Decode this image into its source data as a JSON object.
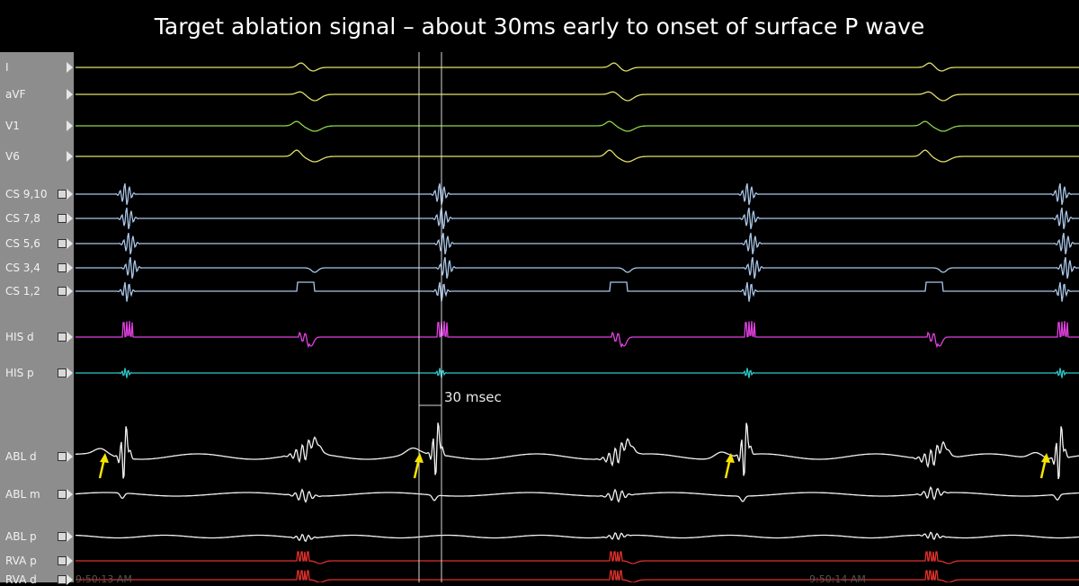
{
  "title": "Target ablation signal – about 30ms early to onset of surface P wave",
  "measurement_label": "30 msec",
  "time_stamps": [
    "9:50:13 AM",
    "9:50:14 AM"
  ],
  "channels": [
    {
      "id": "I",
      "label": "I",
      "color": "#e3df6a",
      "control": "arrow"
    },
    {
      "id": "aVF",
      "label": "aVF",
      "color": "#e3df6a",
      "control": "arrow"
    },
    {
      "id": "V1",
      "label": "V1",
      "color": "#8fd64a",
      "control": "arrow"
    },
    {
      "id": "V6",
      "label": "V6",
      "color": "#e3df6a",
      "control": "arrow"
    },
    {
      "id": "CS910",
      "label": "CS 9,10",
      "color": "#a9c6e8",
      "control": "box"
    },
    {
      "id": "CS78",
      "label": "CS 7,8",
      "color": "#a9c6e8",
      "control": "box"
    },
    {
      "id": "CS56",
      "label": "CS 5,6",
      "color": "#a9c6e8",
      "control": "box"
    },
    {
      "id": "CS34",
      "label": "CS 3,4",
      "color": "#a9c6e8",
      "control": "box"
    },
    {
      "id": "CS12",
      "label": "CS 1,2",
      "color": "#a9c6e8",
      "control": "box"
    },
    {
      "id": "HISd",
      "label": "HIS d",
      "color": "#e040e0",
      "control": "box"
    },
    {
      "id": "HISp",
      "label": "HIS p",
      "color": "#2ec8c8",
      "control": "box"
    },
    {
      "id": "ABLd",
      "label": "ABL d",
      "color": "#f2f2f2",
      "control": "box"
    },
    {
      "id": "ABLm",
      "label": "ABL m",
      "color": "#f2f2f2",
      "control": "box"
    },
    {
      "id": "ABLp",
      "label": "ABL p",
      "color": "#f2f2f2",
      "control": "box"
    },
    {
      "id": "RVAp",
      "label": "RVA p",
      "color": "#e0302a",
      "control": "box"
    },
    {
      "id": "RVAd",
      "label": "RVA d",
      "color": "#e0302a",
      "control": "box"
    }
  ],
  "colors": {
    "background": "#000000",
    "panel": "#8d8d8d",
    "caliper": "#d9d9d9",
    "marker_arrow": "#f5e400"
  }
}
